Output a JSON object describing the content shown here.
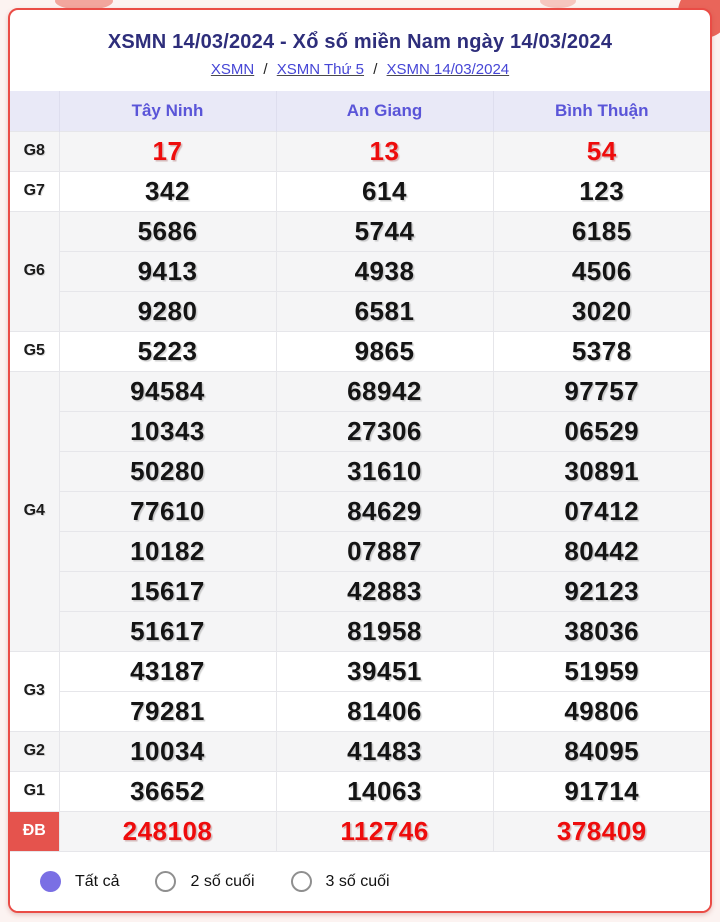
{
  "page": {
    "title": "XSMN 14/03/2024 - Xổ số miền Nam ngày 14/03/2024",
    "breadcrumb_separator": "/",
    "breadcrumb": [
      {
        "label": "XSMN"
      },
      {
        "label": "XSMN Thứ 5"
      },
      {
        "label": "XSMN 14/03/2024"
      }
    ]
  },
  "table": {
    "columns": [
      "Tây Ninh",
      "An Giang",
      "Bình Thuận"
    ],
    "rows": [
      {
        "prize": "G8",
        "highlight": "red",
        "values": [
          [
            "17"
          ],
          [
            "13"
          ],
          [
            "54"
          ]
        ]
      },
      {
        "prize": "G7",
        "values": [
          [
            "342"
          ],
          [
            "614"
          ],
          [
            "123"
          ]
        ]
      },
      {
        "prize": "G6",
        "values": [
          [
            "5686",
            "9413",
            "9280"
          ],
          [
            "5744",
            "4938",
            "6581"
          ],
          [
            "6185",
            "4506",
            "3020"
          ]
        ]
      },
      {
        "prize": "G5",
        "values": [
          [
            "5223"
          ],
          [
            "9865"
          ],
          [
            "5378"
          ]
        ]
      },
      {
        "prize": "G4",
        "values": [
          [
            "94584",
            "10343",
            "50280",
            "77610",
            "10182",
            "15617",
            "51617"
          ],
          [
            "68942",
            "27306",
            "31610",
            "84629",
            "07887",
            "42883",
            "81958"
          ],
          [
            "97757",
            "06529",
            "30891",
            "07412",
            "80442",
            "92123",
            "38036"
          ]
        ]
      },
      {
        "prize": "G3",
        "values": [
          [
            "43187",
            "79281"
          ],
          [
            "39451",
            "81406"
          ],
          [
            "51959",
            "49806"
          ]
        ]
      },
      {
        "prize": "G2",
        "values": [
          [
            "10034"
          ],
          [
            "41483"
          ],
          [
            "84095"
          ]
        ]
      },
      {
        "prize": "G1",
        "values": [
          [
            "36652"
          ],
          [
            "14063"
          ],
          [
            "91714"
          ]
        ]
      },
      {
        "prize": "ĐB",
        "highlight": "red",
        "prize_style": "red-badge",
        "values": [
          [
            "248108"
          ],
          [
            "112746"
          ],
          [
            "378409"
          ]
        ]
      }
    ]
  },
  "filters": {
    "options": [
      {
        "label": "Tất cả",
        "selected": true
      },
      {
        "label": "2 số cuối",
        "selected": false
      },
      {
        "label": "3 số cuối",
        "selected": false
      }
    ]
  },
  "colors": {
    "page_bg": "#fcf3f1",
    "card_border": "#ea4c46",
    "title": "#2e2e7b",
    "link": "#4646d6",
    "header_bg": "#e9e9f7",
    "header_text": "#5a55d8",
    "band": "#f5f5f6",
    "value": "#141414",
    "red_value": "#ee0c0c",
    "db_badge_bg": "#e5534d",
    "radio_selected": "#7a6fe4"
  }
}
